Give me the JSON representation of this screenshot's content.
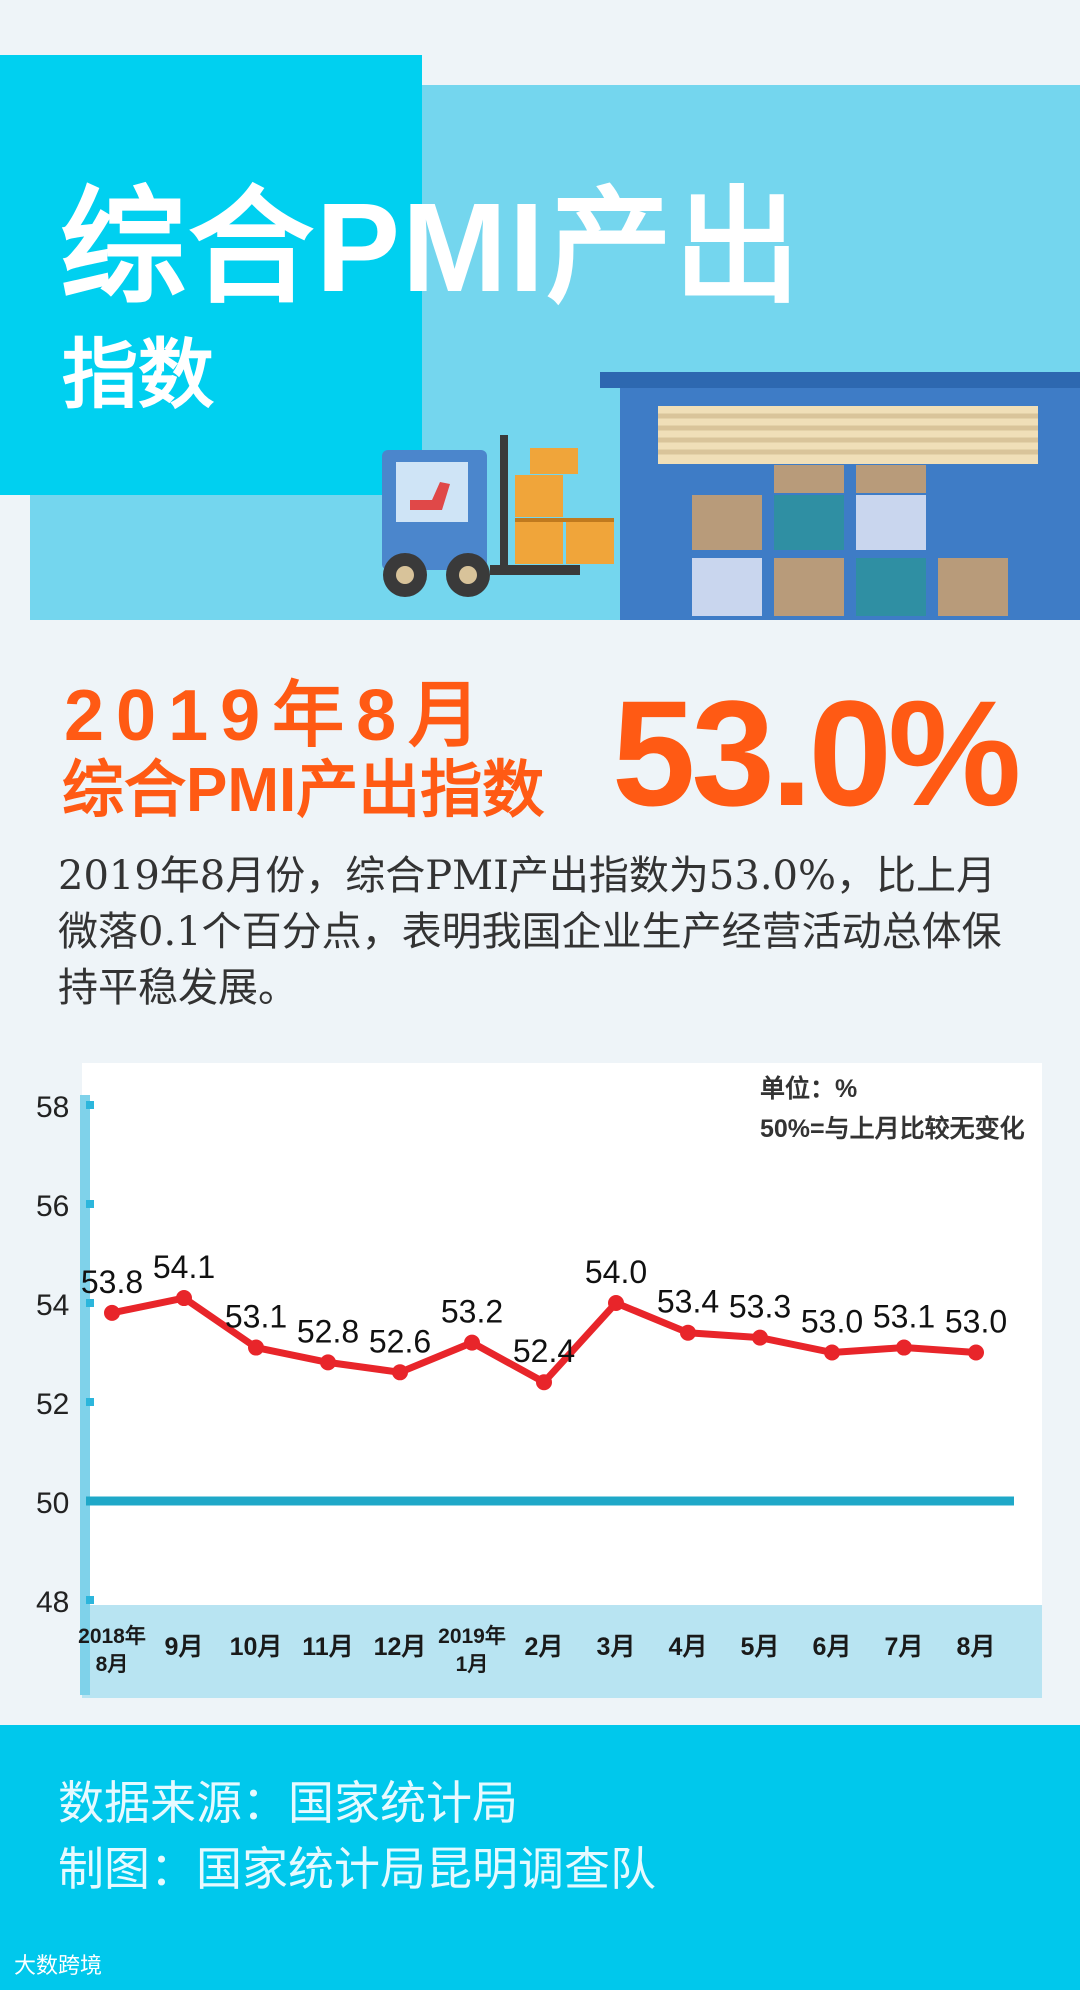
{
  "header": {
    "title_line1": "综合PMI产出",
    "title_line2": "指数"
  },
  "headline": {
    "date": "2019年8月",
    "label": "综合PMI产出指数",
    "value": "53.0%"
  },
  "description": "2019年8月份，综合PMI产出指数为53.0%，比上月微落0.1个百分点，表明我国企业生产经营活动总体保持平稳发展。",
  "chart_data": {
    "type": "line",
    "unit_note": "单位：%",
    "reference_note": "50%=与上月比较无变化",
    "categories": [
      "2018年\n8月",
      "9月",
      "10月",
      "11月",
      "12月",
      "2019年\n1月",
      "2月",
      "3月",
      "4月",
      "5月",
      "6月",
      "7月",
      "8月"
    ],
    "series": [
      {
        "values": [
          53.8,
          54.1,
          53.1,
          52.8,
          52.6,
          53.2,
          52.4,
          54.0,
          53.4,
          53.3,
          53.0,
          53.1,
          53.0
        ],
        "labels": [
          "53.8",
          "54.1",
          "53.1",
          "52.8",
          "52.6",
          "53.2",
          "52.4",
          "54.0",
          "53.4",
          "53.3",
          "53.0",
          "53.1",
          "53.0"
        ]
      }
    ],
    "reference_value": 50,
    "ylim": [
      48,
      58
    ],
    "yticks": [
      58,
      56,
      54,
      52,
      50,
      48
    ],
    "line_color": "#e8252a",
    "reference_color": "#1fa8c8"
  },
  "footer": {
    "source": "数据来源：国家统计局",
    "author": "制图：国家统计局昆明调查队",
    "watermark": "大数跨境"
  },
  "colors": {
    "accent_orange": "#ff5a14",
    "cyan": "#00c8ec",
    "light_cyan": "#74d6ee"
  }
}
